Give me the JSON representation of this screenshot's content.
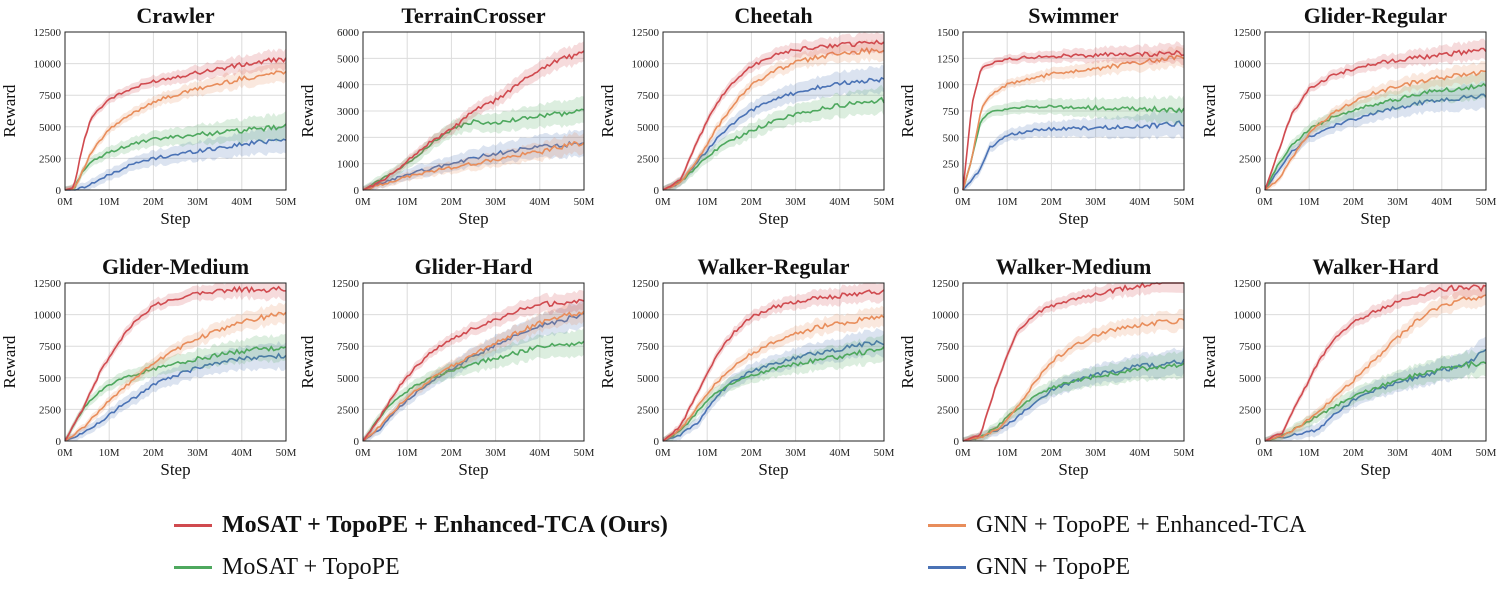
{
  "legend": {
    "entries": [
      {
        "key": "ours",
        "label": "MoSAT + TopoPE + Enhanced-TCA (Ours)",
        "color": "#d04a4f",
        "bold": true
      },
      {
        "key": "gnn_tca",
        "label": "GNN + TopoPE + Enhanced-TCA",
        "color": "#e88d5b",
        "bold": false
      },
      {
        "key": "mosat",
        "label": "MoSAT + TopoPE",
        "color": "#4ea85e",
        "bold": false
      },
      {
        "key": "gnn",
        "label": "GNN + TopoPE",
        "color": "#4a72b5",
        "bold": false
      }
    ]
  },
  "chart_data": [
    {
      "type": "line",
      "title": "Crawler",
      "xlabel": "Step",
      "ylabel": "Reward",
      "xticks": [
        "0M",
        "10M",
        "20M",
        "30M",
        "40M",
        "50M"
      ],
      "xlim": [
        0,
        50
      ],
      "ylim": [
        0,
        12500
      ],
      "yticks": [
        0,
        2500,
        5000,
        7500,
        10000,
        12500
      ],
      "grid": true,
      "x": [
        0,
        2,
        4,
        6,
        10,
        15,
        20,
        30,
        40,
        50
      ],
      "series": [
        {
          "name": "MoSAT + TopoPE + Enhanced-TCA (Ours)",
          "values": [
            0,
            200,
            3500,
            5800,
            7200,
            8000,
            8600,
            9300,
            9900,
            10400
          ]
        },
        {
          "name": "GNN + TopoPE + Enhanced-TCA",
          "values": [
            0,
            100,
            1500,
            3000,
            4800,
            6000,
            7000,
            8000,
            8800,
            9400
          ]
        },
        {
          "name": "MoSAT + TopoPE",
          "values": [
            0,
            100,
            1500,
            2200,
            3000,
            3600,
            4000,
            4400,
            4700,
            5000
          ]
        },
        {
          "name": "GNN + TopoPE",
          "values": [
            0,
            0,
            200,
            500,
            1200,
            2000,
            2500,
            3100,
            3600,
            4100
          ]
        }
      ]
    },
    {
      "type": "line",
      "title": "TerrainCrosser",
      "xlabel": "Step",
      "ylabel": "Reward",
      "xticks": [
        "0M",
        "10M",
        "20M",
        "30M",
        "40M",
        "50M"
      ],
      "xlim": [
        0,
        50
      ],
      "ylim": [
        0,
        6000
      ],
      "yticks": [
        0,
        1000,
        2000,
        3000,
        4000,
        5000,
        6000
      ],
      "grid": true,
      "x": [
        0,
        5,
        10,
        15,
        20,
        25,
        30,
        35,
        40,
        45,
        50
      ],
      "series": [
        {
          "name": "MoSAT + TopoPE + Enhanced-TCA (Ours)",
          "values": [
            0,
            400,
            1100,
            1800,
            2300,
            3000,
            3400,
            4000,
            4600,
            5000,
            5200
          ]
        },
        {
          "name": "GNN + TopoPE + Enhanced-TCA",
          "values": [
            0,
            250,
            500,
            700,
            850,
            1000,
            1150,
            1300,
            1450,
            1650,
            1800
          ]
        },
        {
          "name": "MoSAT + TopoPE",
          "values": [
            0,
            500,
            1000,
            1700,
            2300,
            2600,
            2500,
            2700,
            2800,
            2900,
            3000
          ]
        },
        {
          "name": "GNN + TopoPE",
          "values": [
            0,
            300,
            600,
            800,
            1000,
            1200,
            1400,
            1500,
            1650,
            1700,
            1750
          ]
        }
      ]
    },
    {
      "type": "line",
      "title": "Cheetah",
      "xlabel": "Step",
      "ylabel": "Reward",
      "xticks": [
        "0M",
        "10M",
        "20M",
        "30M",
        "40M",
        "50M"
      ],
      "xlim": [
        0,
        50
      ],
      "ylim": [
        0,
        12500
      ],
      "yticks": [
        0,
        2500,
        5000,
        7500,
        10000,
        12500
      ],
      "grid": true,
      "x": [
        0,
        4,
        8,
        12,
        16,
        20,
        25,
        30,
        35,
        40,
        45,
        50
      ],
      "series": [
        {
          "name": "MoSAT + TopoPE + Enhanced-TCA (Ours)",
          "values": [
            0,
            800,
            4000,
            6800,
            8600,
            9800,
            10600,
            11100,
            11300,
            11500,
            11600,
            11700
          ]
        },
        {
          "name": "GNN + TopoPE + Enhanced-TCA",
          "values": [
            0,
            600,
            2500,
            4800,
            6800,
            8300,
            9400,
            10100,
            10500,
            10800,
            11000,
            11100
          ]
        },
        {
          "name": "MoSAT + TopoPE",
          "values": [
            0,
            600,
            2000,
            3200,
            4000,
            4700,
            5400,
            6000,
            6400,
            6700,
            6900,
            7100
          ]
        },
        {
          "name": "GNN + TopoPE",
          "values": [
            0,
            600,
            2300,
            4000,
            5300,
            6300,
            7100,
            7700,
            8100,
            8400,
            8600,
            8700
          ]
        }
      ]
    },
    {
      "type": "line",
      "title": "Swimmer",
      "xlabel": "Step",
      "ylabel": "Reward",
      "xticks": [
        "0M",
        "10M",
        "20M",
        "30M",
        "40M",
        "50M"
      ],
      "xlim": [
        0,
        50
      ],
      "ylim": [
        0,
        1500
      ],
      "yticks": [
        0,
        250,
        500,
        750,
        1000,
        1250,
        1500
      ],
      "grid": true,
      "x": [
        0,
        2,
        4,
        6,
        10,
        15,
        20,
        30,
        40,
        50
      ],
      "series": [
        {
          "name": "MoSAT + TopoPE + Enhanced-TCA (Ours)",
          "values": [
            0,
            800,
            1150,
            1200,
            1240,
            1260,
            1270,
            1280,
            1290,
            1300
          ]
        },
        {
          "name": "GNN + TopoPE + Enhanced-TCA",
          "values": [
            0,
            300,
            750,
            900,
            1000,
            1050,
            1100,
            1150,
            1210,
            1270
          ]
        },
        {
          "name": "MoSAT + TopoPE",
          "values": [
            0,
            300,
            650,
            740,
            770,
            790,
            790,
            780,
            770,
            760
          ]
        },
        {
          "name": "GNN + TopoPE",
          "values": [
            0,
            100,
            200,
            400,
            520,
            560,
            580,
            590,
            600,
            630
          ]
        }
      ]
    },
    {
      "type": "line",
      "title": "Glider-Regular",
      "xlabel": "Step",
      "ylabel": "Reward",
      "xticks": [
        "0M",
        "10M",
        "20M",
        "30M",
        "40M",
        "50M"
      ],
      "xlim": [
        0,
        50
      ],
      "ylim": [
        0,
        12500
      ],
      "yticks": [
        0,
        2500,
        5000,
        7500,
        10000,
        12500
      ],
      "grid": true,
      "x": [
        0,
        3,
        6,
        10,
        15,
        20,
        25,
        30,
        35,
        40,
        45,
        50
      ],
      "series": [
        {
          "name": "MoSAT + TopoPE + Enhanced-TCA (Ours)",
          "values": [
            0,
            3000,
            6000,
            8000,
            9000,
            9600,
            10000,
            10300,
            10500,
            10700,
            10900,
            11000
          ]
        },
        {
          "name": "GNN + TopoPE + Enhanced-TCA",
          "values": [
            0,
            800,
            2500,
            4500,
            6000,
            7000,
            7700,
            8200,
            8600,
            8900,
            9100,
            9300
          ]
        },
        {
          "name": "MoSAT + TopoPE",
          "values": [
            0,
            2000,
            3500,
            4800,
            5700,
            6300,
            6800,
            7200,
            7600,
            7900,
            8100,
            8300
          ]
        },
        {
          "name": "GNN + TopoPE",
          "values": [
            0,
            1500,
            3000,
            4200,
            5000,
            5600,
            6100,
            6500,
            6900,
            7200,
            7300,
            7400
          ]
        }
      ]
    },
    {
      "type": "line",
      "title": "Glider-Medium",
      "xlabel": "Step",
      "ylabel": "Reward",
      "xticks": [
        "0M",
        "10M",
        "20M",
        "30M",
        "40M",
        "50M"
      ],
      "xlim": [
        0,
        50
      ],
      "ylim": [
        0,
        12500
      ],
      "yticks": [
        0,
        2500,
        5000,
        7500,
        10000,
        12500
      ],
      "grid": true,
      "x": [
        0,
        4,
        8,
        12,
        16,
        20,
        25,
        30,
        35,
        40,
        45,
        50
      ],
      "series": [
        {
          "name": "MoSAT + TopoPE + Enhanced-TCA (Ours)",
          "values": [
            0,
            2500,
            5500,
            7800,
            9500,
            10700,
            11300,
            11700,
            11900,
            12000,
            11950,
            12000
          ]
        },
        {
          "name": "GNN + TopoPE + Enhanced-TCA",
          "values": [
            0,
            1000,
            2500,
            3800,
            5000,
            6200,
            7200,
            8100,
            8800,
            9400,
            9800,
            10100
          ]
        },
        {
          "name": "MoSAT + TopoPE",
          "values": [
            0,
            2500,
            4000,
            4800,
            5300,
            5700,
            6100,
            6500,
            6800,
            7100,
            7300,
            7400
          ]
        },
        {
          "name": "GNN + TopoPE",
          "values": [
            0,
            600,
            1500,
            2600,
            3500,
            4400,
            5200,
            5800,
            6200,
            6500,
            6700,
            6800
          ]
        }
      ]
    },
    {
      "type": "line",
      "title": "Glider-Hard",
      "xlabel": "Step",
      "ylabel": "Reward",
      "xticks": [
        "0M",
        "10M",
        "20M",
        "30M",
        "40M",
        "50M"
      ],
      "xlim": [
        0,
        50
      ],
      "ylim": [
        0,
        12500
      ],
      "yticks": [
        0,
        2500,
        5000,
        7500,
        10000,
        12500
      ],
      "grid": true,
      "x": [
        0,
        4,
        8,
        12,
        16,
        20,
        25,
        30,
        35,
        40,
        45,
        50
      ],
      "series": [
        {
          "name": "MoSAT + TopoPE + Enhanced-TCA (Ours)",
          "values": [
            0,
            2000,
            4200,
            5900,
            7200,
            8100,
            8900,
            9600,
            10300,
            10800,
            10900,
            11000
          ]
        },
        {
          "name": "GNN + TopoPE + Enhanced-TCA",
          "values": [
            0,
            1200,
            2800,
            4000,
            5000,
            5900,
            6900,
            7800,
            8600,
            9300,
            9800,
            10300
          ]
        },
        {
          "name": "MoSAT + TopoPE",
          "values": [
            0,
            2000,
            3500,
            4400,
            5100,
            5600,
            6100,
            6600,
            7000,
            7400,
            7600,
            7800
          ]
        },
        {
          "name": "GNN + TopoPE",
          "values": [
            0,
            1000,
            2600,
            3800,
            4800,
            5700,
            6700,
            7600,
            8400,
            9100,
            9600,
            10000
          ]
        }
      ]
    },
    {
      "type": "line",
      "title": "Walker-Regular",
      "xlabel": "Step",
      "ylabel": "Reward",
      "xticks": [
        "0M",
        "10M",
        "20M",
        "30M",
        "40M",
        "50M"
      ],
      "xlim": [
        0,
        50
      ],
      "ylim": [
        0,
        12500
      ],
      "yticks": [
        0,
        2500,
        5000,
        7500,
        10000,
        12500
      ],
      "grid": true,
      "x": [
        0,
        4,
        8,
        12,
        16,
        20,
        25,
        30,
        35,
        40,
        45,
        50
      ],
      "series": [
        {
          "name": "MoSAT + TopoPE + Enhanced-TCA (Ours)",
          "values": [
            0,
            1200,
            4000,
            6700,
            8600,
            9800,
            10600,
            11000,
            11300,
            11500,
            11700,
            11900
          ]
        },
        {
          "name": "GNN + TopoPE + Enhanced-TCA",
          "values": [
            0,
            900,
            2800,
            4600,
            5900,
            6900,
            7800,
            8500,
            9000,
            9300,
            9600,
            9800
          ]
        },
        {
          "name": "MoSAT + TopoPE",
          "values": [
            0,
            800,
            2400,
            3800,
            4600,
            5200,
            5700,
            6100,
            6400,
            6700,
            7000,
            7300
          ]
        },
        {
          "name": "GNN + TopoPE",
          "values": [
            0,
            500,
            1500,
            3500,
            4800,
            5500,
            6100,
            6600,
            7000,
            7300,
            7600,
            7800
          ]
        }
      ]
    },
    {
      "type": "line",
      "title": "Walker-Medium",
      "xlabel": "Step",
      "ylabel": "Reward",
      "xticks": [
        "0M",
        "10M",
        "20M",
        "30M",
        "40M",
        "50M"
      ],
      "xlim": [
        0,
        50
      ],
      "ylim": [
        0,
        12500
      ],
      "yticks": [
        0,
        2500,
        5000,
        7500,
        10000,
        12500
      ],
      "grid": true,
      "x": [
        0,
        4,
        8,
        12,
        16,
        20,
        25,
        30,
        35,
        40,
        45,
        50
      ],
      "series": [
        {
          "name": "MoSAT + TopoPE + Enhanced-TCA (Ours)",
          "values": [
            0,
            500,
            5000,
            8500,
            10000,
            10700,
            11200,
            11600,
            12000,
            12300,
            12600,
            12800
          ]
        },
        {
          "name": "GNN + TopoPE + Enhanced-TCA",
          "values": [
            0,
            300,
            1000,
            2500,
            4500,
            6300,
            7500,
            8400,
            8900,
            9200,
            9400,
            9500
          ]
        },
        {
          "name": "MoSAT + TopoPE",
          "values": [
            0,
            300,
            1200,
            2500,
            3500,
            4200,
            4700,
            5100,
            5400,
            5700,
            5900,
            6100
          ]
        },
        {
          "name": "GNN + TopoPE",
          "values": [
            0,
            300,
            900,
            1800,
            3000,
            4000,
            4700,
            5200,
            5600,
            5900,
            6100,
            6300
          ]
        }
      ]
    },
    {
      "type": "line",
      "title": "Walker-Hard",
      "xlabel": "Step",
      "ylabel": "Reward",
      "xticks": [
        "0M",
        "10M",
        "20M",
        "30M",
        "40M",
        "50M"
      ],
      "xlim": [
        0,
        50
      ],
      "ylim": [
        0,
        12500
      ],
      "yticks": [
        0,
        2500,
        5000,
        7500,
        10000,
        12500
      ],
      "grid": true,
      "x": [
        0,
        4,
        8,
        12,
        16,
        20,
        25,
        30,
        35,
        40,
        45,
        50
      ],
      "series": [
        {
          "name": "MoSAT + TopoPE + Enhanced-TCA (Ours)",
          "values": [
            0,
            700,
            3500,
            6200,
            8200,
            9400,
            10300,
            11000,
            11600,
            12000,
            12200,
            12100
          ]
        },
        {
          "name": "GNN + TopoPE + Enhanced-TCA",
          "values": [
            0,
            400,
            1200,
            2300,
            3500,
            4800,
            6500,
            8200,
            9700,
            10700,
            11200,
            11500
          ]
        },
        {
          "name": "MoSAT + TopoPE",
          "values": [
            0,
            400,
            1200,
            2000,
            2800,
            3500,
            4200,
            4800,
            5300,
            5700,
            6000,
            6200
          ]
        },
        {
          "name": "GNN + TopoPE",
          "values": [
            0,
            300,
            600,
            900,
            2200,
            3200,
            4000,
            4600,
            5100,
            5600,
            6000,
            7200
          ]
        }
      ]
    }
  ]
}
